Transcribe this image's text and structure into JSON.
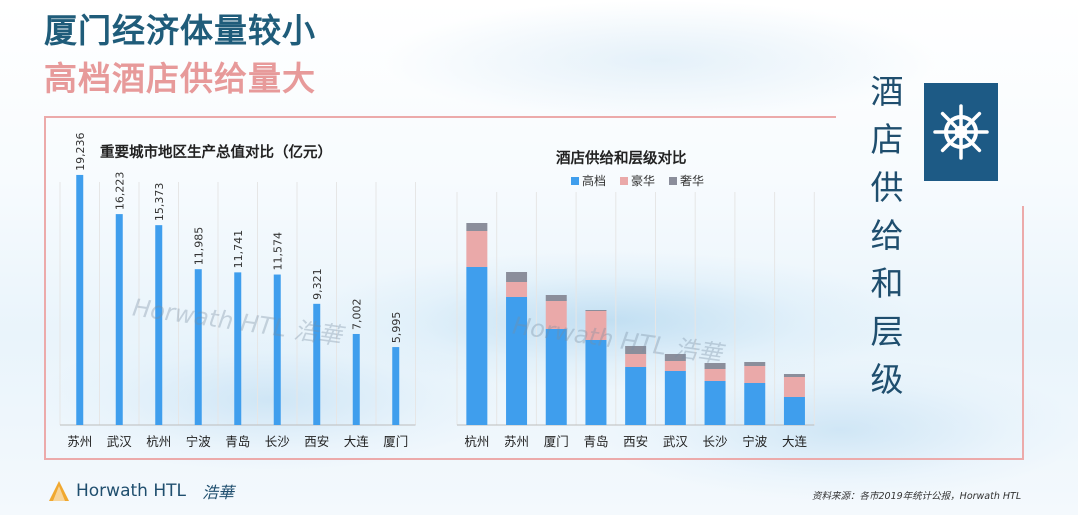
{
  "header": {
    "title_line1": "厦门经济体量较小",
    "title_line2": "高档酒店供给量大"
  },
  "side_title": [
    "酒",
    "店",
    "供",
    "给",
    "和",
    "层",
    "级"
  ],
  "colors": {
    "title_dark": "#1f5c7a",
    "title_pink": "#e79a9a",
    "bar_blue": "#3f9eed",
    "luxury_pink": "#eaa9a9",
    "deluxe_gray": "#8b8e9b",
    "frame": "#ecaaaa",
    "helm_box": "#1d5a85"
  },
  "icons": {
    "helm": "ship-wheel-icon",
    "logo": "horwath-triangle-icon"
  },
  "chart_data": [
    {
      "type": "bar",
      "title": "重要城市地区生产总值对比（亿元）",
      "categories": [
        "苏州",
        "武汉",
        "杭州",
        "宁波",
        "青岛",
        "长沙",
        "西安",
        "大连",
        "厦门"
      ],
      "values": [
        19236,
        16223,
        15373,
        11985,
        11741,
        11574,
        9321,
        7002,
        5995
      ],
      "value_labels": [
        "19,236",
        "16,223",
        "15,373",
        "11,985",
        "11,741",
        "11,574",
        "9,321",
        "7,002",
        "5,995"
      ],
      "ylim": [
        0,
        20000
      ],
      "grid": true
    },
    {
      "type": "bar",
      "stacked": true,
      "title": "酒店供给和层级对比",
      "categories": [
        "杭州",
        "苏州",
        "厦门",
        "青岛",
        "西安",
        "武汉",
        "长沙",
        "宁波",
        "大连"
      ],
      "series": [
        {
          "name": "高档",
          "values": [
            158,
            128,
            96,
            85,
            58,
            54,
            44,
            42,
            28
          ]
        },
        {
          "name": "豪华",
          "values": [
            36,
            15,
            28,
            29,
            13,
            10,
            12,
            17,
            20
          ]
        },
        {
          "name": "奢华",
          "values": [
            8,
            10,
            6,
            1,
            8,
            7,
            6,
            4,
            3
          ]
        }
      ],
      "legend_position": "top",
      "ylim": [
        0,
        210
      ],
      "grid": true
    }
  ],
  "watermark": {
    "text_en": "Horwath HTL",
    "text_cn": "浩華"
  },
  "footer": {
    "logo_en": "Horwath HTL",
    "logo_cn": "浩華",
    "source": "资料来源：各市2019年统计公报，Horwath HTL"
  }
}
